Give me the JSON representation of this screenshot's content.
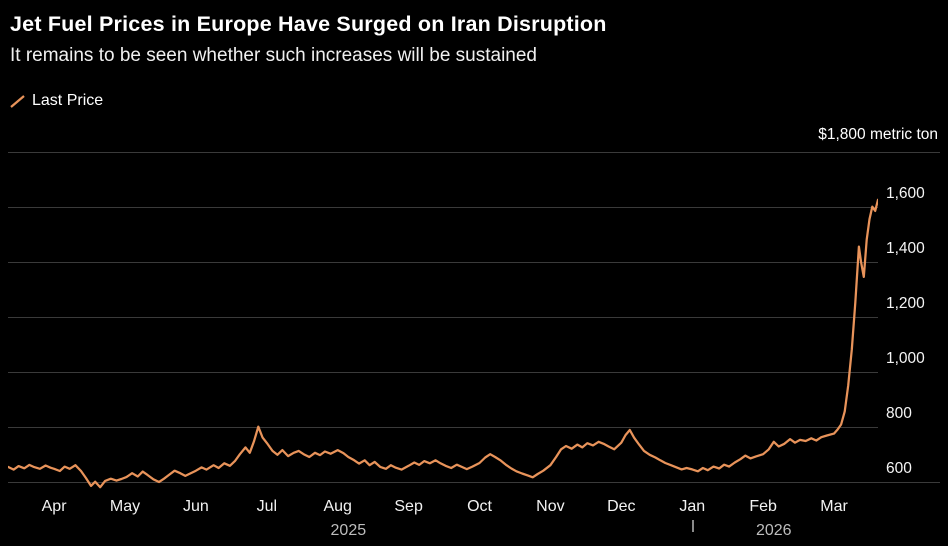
{
  "header": {
    "title": "Jet Fuel Prices in Europe Have Surged on Iran Disruption",
    "subtitle": "It remains to be seen whether such increases will be sustained"
  },
  "legend": {
    "label": "Last Price"
  },
  "chart_data": {
    "type": "line",
    "title": "Jet Fuel Prices in Europe Have Surged on Iran Disruption",
    "subtitle": "It remains to be seen whether such increases will be sustained",
    "y_unit_label": "$1,800 metric ton",
    "line_color": "#E8935A",
    "grid_color": "#3a3a3a",
    "background_color": "#000000",
    "ylim": [
      600,
      1800
    ],
    "x_range": [
      -0.65,
      11.62
    ],
    "y_gridlines": [
      {
        "value": 1800,
        "label": ""
      },
      {
        "value": 1600,
        "label": "1,600"
      },
      {
        "value": 1400,
        "label": "1,400"
      },
      {
        "value": 1200,
        "label": "1,200"
      },
      {
        "value": 1000,
        "label": "1,000"
      },
      {
        "value": 800,
        "label": "800"
      },
      {
        "value": 600,
        "label": "600"
      }
    ],
    "x_tick_labels": [
      "Apr",
      "May",
      "Jun",
      "Jul",
      "Aug",
      "Sep",
      "Oct",
      "Nov",
      "Dec",
      "Jan",
      "Feb",
      "Mar"
    ],
    "year_labels": [
      {
        "label": "2025",
        "month": 4.15
      },
      {
        "label": "2026",
        "month": 10.15
      }
    ],
    "year_separator_month": 9,
    "series": [
      {
        "name": "Last Price",
        "points": [
          [
            -0.65,
            655
          ],
          [
            -0.57,
            645
          ],
          [
            -0.5,
            658
          ],
          [
            -0.42,
            650
          ],
          [
            -0.35,
            662
          ],
          [
            -0.28,
            654
          ],
          [
            -0.2,
            648
          ],
          [
            -0.12,
            660
          ],
          [
            -0.05,
            652
          ],
          [
            0.0,
            648
          ],
          [
            0.08,
            640
          ],
          [
            0.15,
            656
          ],
          [
            0.22,
            648
          ],
          [
            0.3,
            661
          ],
          [
            0.38,
            640
          ],
          [
            0.45,
            614
          ],
          [
            0.52,
            586
          ],
          [
            0.58,
            601
          ],
          [
            0.65,
            581
          ],
          [
            0.72,
            604
          ],
          [
            0.8,
            612
          ],
          [
            0.88,
            605
          ],
          [
            0.95,
            611
          ],
          [
            1.02,
            618
          ],
          [
            1.1,
            632
          ],
          [
            1.18,
            620
          ],
          [
            1.25,
            638
          ],
          [
            1.32,
            625
          ],
          [
            1.4,
            610
          ],
          [
            1.48,
            600
          ],
          [
            1.55,
            612
          ],
          [
            1.62,
            626
          ],
          [
            1.7,
            641
          ],
          [
            1.78,
            632
          ],
          [
            1.85,
            622
          ],
          [
            1.92,
            631
          ],
          [
            2.0,
            641
          ],
          [
            2.08,
            653
          ],
          [
            2.15,
            645
          ],
          [
            2.25,
            661
          ],
          [
            2.32,
            651
          ],
          [
            2.4,
            668
          ],
          [
            2.48,
            659
          ],
          [
            2.55,
            676
          ],
          [
            2.62,
            701
          ],
          [
            2.7,
            726
          ],
          [
            2.76,
            706
          ],
          [
            2.82,
            748
          ],
          [
            2.88,
            801
          ],
          [
            2.94,
            762
          ],
          [
            3.0,
            742
          ],
          [
            3.08,
            713
          ],
          [
            3.15,
            699
          ],
          [
            3.22,
            716
          ],
          [
            3.3,
            694
          ],
          [
            3.38,
            706
          ],
          [
            3.45,
            713
          ],
          [
            3.52,
            701
          ],
          [
            3.6,
            691
          ],
          [
            3.68,
            706
          ],
          [
            3.75,
            698
          ],
          [
            3.82,
            711
          ],
          [
            3.9,
            703
          ],
          [
            4.0,
            716
          ],
          [
            4.08,
            705
          ],
          [
            4.15,
            691
          ],
          [
            4.22,
            681
          ],
          [
            4.3,
            667
          ],
          [
            4.38,
            679
          ],
          [
            4.45,
            661
          ],
          [
            4.52,
            673
          ],
          [
            4.6,
            655
          ],
          [
            4.68,
            648
          ],
          [
            4.75,
            661
          ],
          [
            4.82,
            652
          ],
          [
            4.9,
            645
          ],
          [
            5.0,
            659
          ],
          [
            5.08,
            671
          ],
          [
            5.15,
            662
          ],
          [
            5.22,
            676
          ],
          [
            5.3,
            668
          ],
          [
            5.38,
            679
          ],
          [
            5.45,
            668
          ],
          [
            5.52,
            659
          ],
          [
            5.6,
            651
          ],
          [
            5.68,
            663
          ],
          [
            5.75,
            655
          ],
          [
            5.82,
            647
          ],
          [
            5.9,
            656
          ],
          [
            6.0,
            669
          ],
          [
            6.08,
            689
          ],
          [
            6.15,
            701
          ],
          [
            6.22,
            691
          ],
          [
            6.3,
            678
          ],
          [
            6.38,
            661
          ],
          [
            6.45,
            649
          ],
          [
            6.52,
            639
          ],
          [
            6.6,
            631
          ],
          [
            6.68,
            624
          ],
          [
            6.75,
            617
          ],
          [
            6.82,
            629
          ],
          [
            6.9,
            641
          ],
          [
            7.0,
            661
          ],
          [
            7.08,
            691
          ],
          [
            7.15,
            719
          ],
          [
            7.22,
            731
          ],
          [
            7.3,
            721
          ],
          [
            7.38,
            736
          ],
          [
            7.45,
            726
          ],
          [
            7.52,
            741
          ],
          [
            7.6,
            733
          ],
          [
            7.68,
            746
          ],
          [
            7.75,
            739
          ],
          [
            7.82,
            729
          ],
          [
            7.9,
            719
          ],
          [
            8.0,
            743
          ],
          [
            8.06,
            771
          ],
          [
            8.12,
            789
          ],
          [
            8.18,
            761
          ],
          [
            8.25,
            736
          ],
          [
            8.32,
            713
          ],
          [
            8.4,
            699
          ],
          [
            8.48,
            689
          ],
          [
            8.55,
            679
          ],
          [
            8.62,
            669
          ],
          [
            8.7,
            661
          ],
          [
            8.78,
            653
          ],
          [
            8.85,
            646
          ],
          [
            8.92,
            651
          ],
          [
            9.0,
            646
          ],
          [
            9.08,
            639
          ],
          [
            9.15,
            651
          ],
          [
            9.22,
            643
          ],
          [
            9.3,
            656
          ],
          [
            9.38,
            649
          ],
          [
            9.45,
            663
          ],
          [
            9.52,
            656
          ],
          [
            9.6,
            671
          ],
          [
            9.68,
            683
          ],
          [
            9.75,
            696
          ],
          [
            9.82,
            686
          ],
          [
            9.9,
            693
          ],
          [
            10.0,
            701
          ],
          [
            10.08,
            719
          ],
          [
            10.15,
            746
          ],
          [
            10.22,
            729
          ],
          [
            10.3,
            739
          ],
          [
            10.38,
            756
          ],
          [
            10.45,
            743
          ],
          [
            10.52,
            753
          ],
          [
            10.6,
            749
          ],
          [
            10.68,
            759
          ],
          [
            10.75,
            751
          ],
          [
            10.82,
            763
          ],
          [
            10.9,
            769
          ],
          [
            11.0,
            776
          ],
          [
            11.05,
            791
          ],
          [
            11.1,
            809
          ],
          [
            11.15,
            856
          ],
          [
            11.2,
            951
          ],
          [
            11.25,
            1082
          ],
          [
            11.3,
            1252
          ],
          [
            11.35,
            1456
          ],
          [
            11.38,
            1401
          ],
          [
            11.42,
            1346
          ],
          [
            11.46,
            1481
          ],
          [
            11.5,
            1556
          ],
          [
            11.54,
            1601
          ],
          [
            11.58,
            1586
          ],
          [
            11.62,
            1626
          ]
        ]
      }
    ]
  }
}
